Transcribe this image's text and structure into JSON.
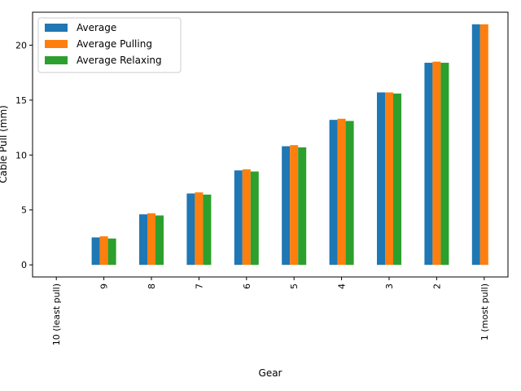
{
  "chart_data": {
    "type": "bar",
    "title": "",
    "xlabel": "Gear",
    "ylabel": "Cable Pull (mm)",
    "categories": [
      "10 (least pull)",
      "9",
      "8",
      "7",
      "6",
      "5",
      "4",
      "3",
      "2",
      "1 (most pull)"
    ],
    "series": [
      {
        "name": "Average",
        "color": "#1f77b4",
        "values": [
          0,
          2.5,
          4.6,
          6.5,
          8.6,
          10.8,
          13.2,
          15.7,
          18.4,
          21.9
        ]
      },
      {
        "name": "Average Pulling",
        "color": "#ff7f0e",
        "values": [
          0,
          2.6,
          4.7,
          6.6,
          8.7,
          10.9,
          13.3,
          15.7,
          18.5,
          21.9
        ]
      },
      {
        "name": "Average Relaxing",
        "color": "#2ca02c",
        "values": [
          0,
          2.4,
          4.5,
          6.4,
          8.5,
          10.7,
          13.1,
          15.6,
          18.4,
          null
        ]
      }
    ],
    "ylim": [
      -1.1,
      23.0
    ],
    "yticks": [
      0,
      5,
      10,
      15,
      20
    ],
    "legend": "top-left",
    "grid": false
  }
}
